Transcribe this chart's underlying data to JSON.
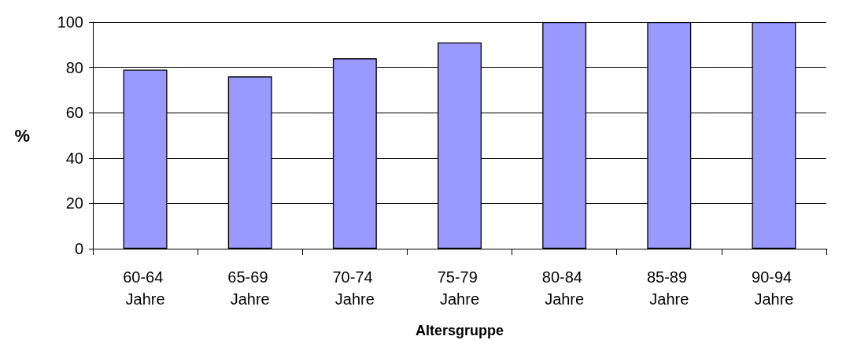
{
  "chart_data": {
    "type": "bar",
    "xlabel": "Altersgruppe",
    "ylabel": "%",
    "categories": [
      "60-64 Jahre",
      "65-69 Jahre",
      "70-74 Jahre",
      "75-79 Jahre",
      "80-84 Jahre",
      "85-89 Jahre",
      "90-94 Jahre"
    ],
    "values": [
      79,
      76,
      84,
      91,
      100,
      100,
      100
    ],
    "color": "#9999ff",
    "ylim": [
      0,
      100
    ],
    "yticks": [
      0,
      20,
      40,
      60,
      80,
      100
    ],
    "grid": "y"
  }
}
